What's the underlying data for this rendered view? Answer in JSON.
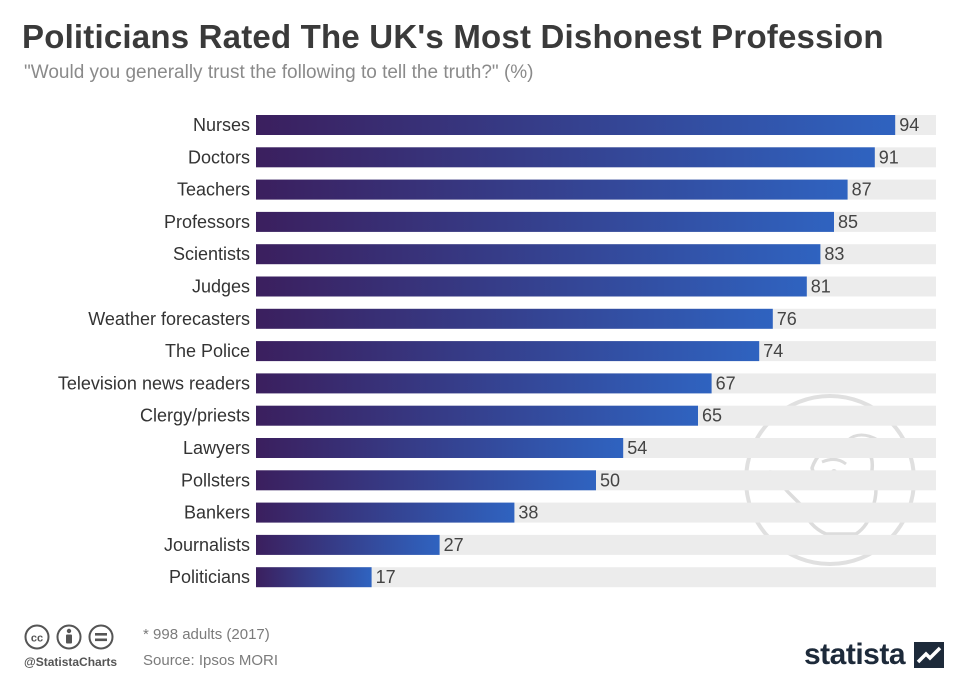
{
  "header": {
    "title": "Politicians Rated The UK's Most Dishonest Profession",
    "subtitle": "\"Would you generally trust the following to tell the truth?\" (%)"
  },
  "chart_data": {
    "type": "bar",
    "orientation": "horizontal",
    "categories": [
      "Nurses",
      "Doctors",
      "Teachers",
      "Professors",
      "Scientists",
      "Judges",
      "Weather forecasters",
      "The Police",
      "Television news readers",
      "Clergy/priests",
      "Lawyers",
      "Pollsters",
      "Bankers",
      "Journalists",
      "Politicians"
    ],
    "values": [
      94,
      91,
      87,
      85,
      83,
      81,
      76,
      74,
      67,
      65,
      54,
      50,
      38,
      27,
      17
    ],
    "xlim": [
      0,
      100
    ],
    "grid": false,
    "legend": "none",
    "colors": {
      "bar_start": "#3b1f5e",
      "bar_end": "#2f63c0",
      "track": "#ececec",
      "label": "#333333",
      "value": "#444444"
    }
  },
  "footer": {
    "handle": "@StatistaCharts",
    "note": "* 998 adults (2017)",
    "source": "Source: Ipsos MORI",
    "brand": "statista",
    "icons": [
      "cc-icon",
      "attribution-icon",
      "no-derivatives-icon"
    ]
  }
}
